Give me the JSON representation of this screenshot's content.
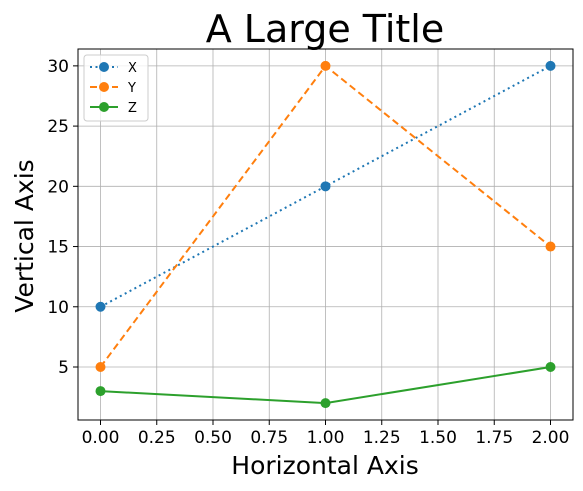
{
  "chart_data": {
    "type": "line",
    "title": "A Large Title",
    "xlabel": "Horizontal Axis",
    "ylabel": "Vertical Axis",
    "x": [
      0,
      1,
      2
    ],
    "xlim": [
      -0.1,
      2.1
    ],
    "ylim": [
      0.6,
      31.4
    ],
    "xticks": [
      0,
      0.25,
      0.5,
      0.75,
      1,
      1.25,
      1.5,
      1.75,
      2
    ],
    "xtick_labels": [
      "0.00",
      "0.25",
      "0.50",
      "0.75",
      "1.00",
      "1.25",
      "1.50",
      "1.75",
      "2.00"
    ],
    "yticks": [
      5,
      10,
      15,
      20,
      25,
      30
    ],
    "ytick_labels": [
      "5",
      "10",
      "15",
      "20",
      "25",
      "30"
    ],
    "grid": true,
    "legend_position": "top-left",
    "series": [
      {
        "name": "X",
        "values": [
          10,
          20,
          30
        ],
        "color": "#1f77b4",
        "linestyle": "dotted",
        "marker": "circle"
      },
      {
        "name": "Y",
        "values": [
          5,
          30,
          15
        ],
        "color": "#ff7f0e",
        "linestyle": "dashed",
        "marker": "circle"
      },
      {
        "name": "Z",
        "values": [
          3,
          2,
          5
        ],
        "color": "#2ca02c",
        "linestyle": "solid",
        "marker": "circle"
      }
    ]
  }
}
